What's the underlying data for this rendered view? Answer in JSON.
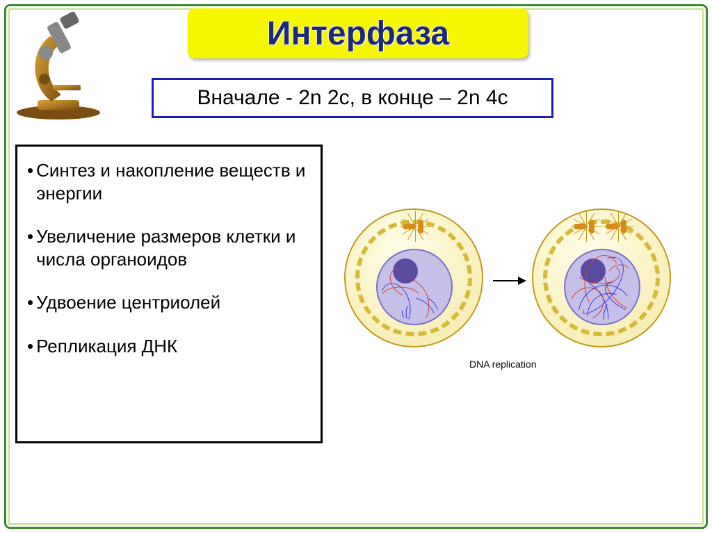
{
  "frame": {
    "outer_color": "#3c8a2e",
    "inner_color": "#c6e08a"
  },
  "title": {
    "text": "Интерфаза",
    "bg": "#f6f600",
    "color": "#1e2a78",
    "fontsize": 48
  },
  "subtitle": {
    "text": "Вначале - 2n 2c, в конце – 2n 4c",
    "border": "#1b1eae",
    "color": "#000000",
    "fontsize": 30
  },
  "bullets": {
    "fontsize": 26,
    "color": "#000000",
    "items": [
      "Синтез и накопление веществ и энергии",
      "Увеличение размеров клетки и числа органоидов",
      "Удвоение центриолей",
      "Репликация ДНК"
    ]
  },
  "diagram": {
    "caption": "DNA replication",
    "caption_fontsize": 14,
    "caption_color": "#000000",
    "cell": {
      "outer_border": "#c09a1a",
      "outer_fill_top": "#fffde6",
      "outer_fill_bottom": "#f6e9a8",
      "membrane_color": "#d6b93a",
      "nucleus_border": "#7a6fc4",
      "nucleus_fill": "#c6bfe8",
      "nucleolus_fill": "#5a4aa0",
      "centriole_color": "#d98b1a",
      "ray_color": "#c09a1a",
      "strand_colors": [
        "#d43a2a",
        "#3a3ad4"
      ]
    },
    "cell1": {
      "centriole_pairs": 1,
      "strand_density": 6
    },
    "cell2": {
      "centriole_pairs": 2,
      "strand_density": 12
    },
    "arrow_width": 36
  },
  "microscope": {
    "body_color": "#a86b1a",
    "highlight": "#e0a535",
    "tube_color": "#6b6b6b",
    "base_color": "#7a4e12"
  }
}
